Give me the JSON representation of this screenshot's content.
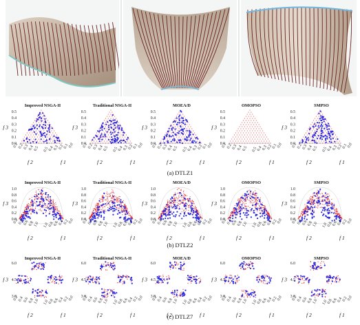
{
  "top_renders": [
    {
      "name": "surface-render-1"
    },
    {
      "name": "surface-render-2"
    },
    {
      "name": "surface-render-3"
    }
  ],
  "algorithms": [
    "Improved NSGA-II",
    "Traditional NSGA-II",
    "MOEA/D",
    "OMOPSO",
    "SMPSO"
  ],
  "rows": [
    {
      "caption": "(a) DTLZ1",
      "shape": "triangle",
      "z_ticks": [
        "0.5",
        "0.4",
        "0.3",
        "0.2",
        "0.1",
        "0.0"
      ],
      "x_ticks": [
        "0.1",
        "0.2",
        "0.3",
        "0.4",
        "0.5"
      ],
      "y_ticks": [
        "0.5",
        "0.4",
        "0.3",
        "0.2",
        "0.1",
        "0.0"
      ]
    },
    {
      "caption": "(b) DTLZ2",
      "shape": "sphere",
      "z_ticks": [
        "1.0",
        "0.8",
        "0.6",
        "0.4",
        "0.2",
        "0.0"
      ],
      "x_ticks": [
        "0.2",
        "0.4",
        "0.6",
        "0.8",
        "1.0"
      ],
      "y_ticks": [
        "1.0",
        "0.8",
        "0.6",
        "0.4",
        "0.2",
        "0.0"
      ]
    },
    {
      "caption": "(c) DTLZ7",
      "shape": "disconnected",
      "z_ticks": [
        "6.0",
        "4.5",
        "3.0"
      ],
      "x_ticks": [
        "0.2",
        "0.4",
        "0.6",
        "0.8",
        "1.0"
      ],
      "y_ticks": [
        "1.0",
        "0.8",
        "0.6",
        "0.4",
        "0.2",
        "0.0"
      ]
    }
  ],
  "axis_labels": {
    "f1": "f 1",
    "f2": "f 2",
    "f3": "f 3"
  },
  "colors": {
    "reference": "#e02020",
    "obtained": "#2a2ae0",
    "surface": "#c9b9a8",
    "stripes": "#5a1a1a"
  }
}
